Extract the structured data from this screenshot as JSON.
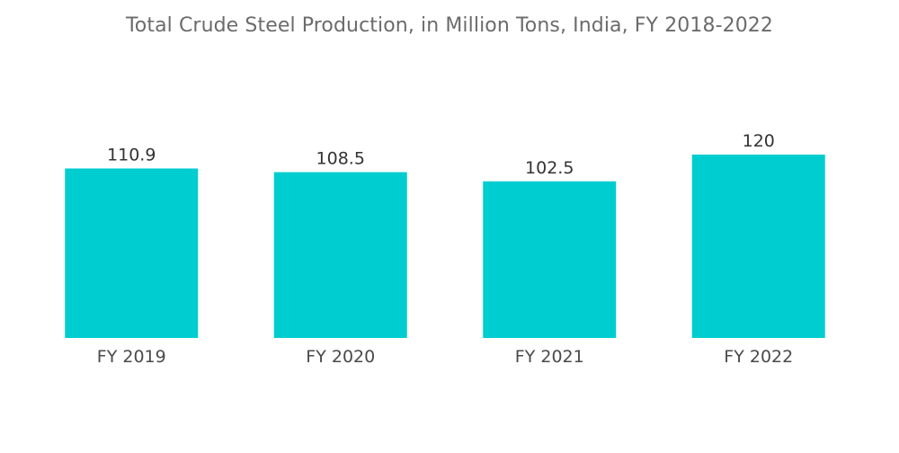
{
  "chart_data": {
    "type": "bar",
    "title": "Total Crude Steel Production, in Million Tons, India, FY 2018-2022",
    "categories": [
      "FY 2019",
      "FY 2020",
      "FY 2021",
      "FY 2022"
    ],
    "values": [
      110.9,
      108.5,
      102.5,
      120
    ],
    "value_labels": [
      "110.9",
      "108.5",
      "102.5",
      "120"
    ],
    "xlabel": "",
    "ylabel": "",
    "ylim": [
      0,
      130
    ],
    "grid": false,
    "legend": "none",
    "colors": {
      "bar": "#00cdd0",
      "title": "#6b6b6b",
      "value_text": "#333333",
      "tick_text": "#4a4a4a"
    }
  }
}
